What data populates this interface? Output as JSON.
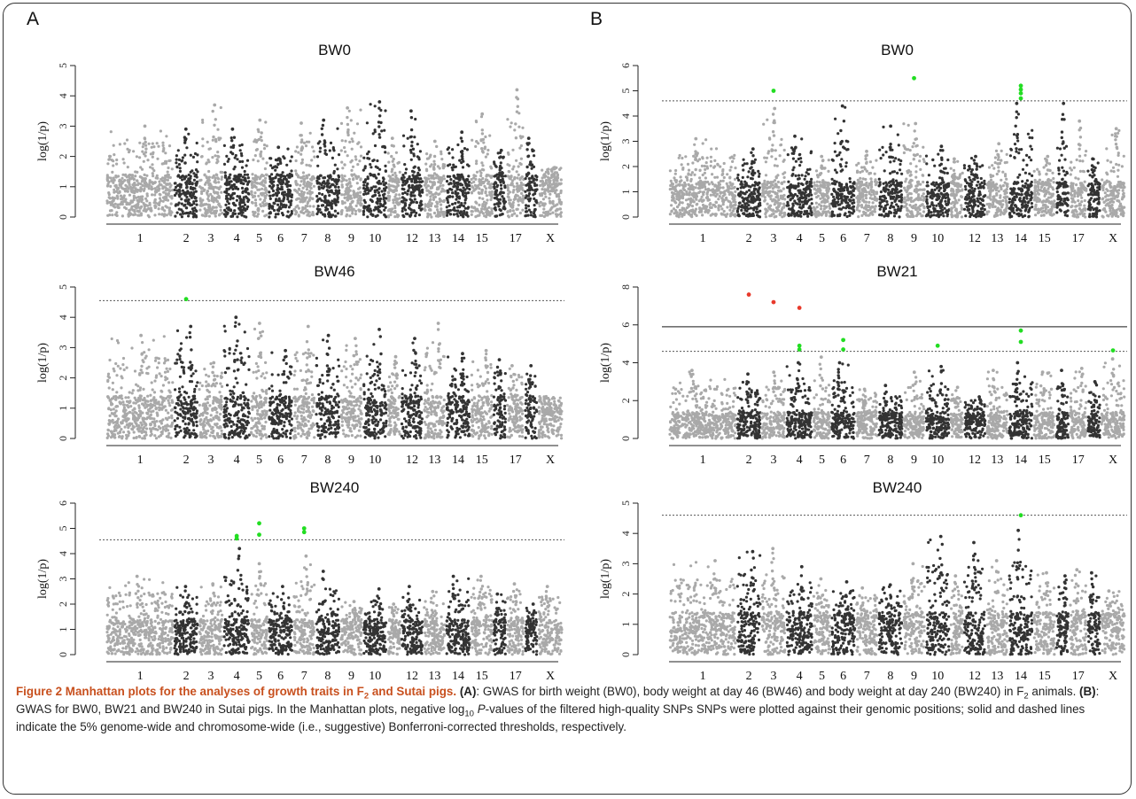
{
  "panels": {
    "A": "A",
    "B": "B"
  },
  "caption": {
    "title_a": "Figure 2 Manhattan plots for the analyses of growth traits in F",
    "title_sub": "2",
    "title_b": " and Sutai pigs.",
    "a_label": "(A)",
    "a_text": ": GWAS for birth weight (BW0), body weight at day 46 (BW46) and body weight at day 240 (BW240) in F",
    "a_sub": "2",
    "a_text2": " animals. ",
    "b_label": "(B)",
    "b_text": ": GWAS for BW0, BW21 and BW240 in Sutai pigs. In the Manhattan plots, negative log",
    "log_sub": "10",
    "p_italic": "P",
    "rest": "-values of the filtered high-quality SNPs SNPs were plotted against their genomic positions; solid and dashed lines indicate the 5% genome-wide and chromosome-wide (i.e., suggestive) Bonferroni-corrected thresholds, respectively."
  },
  "colors": {
    "light": "#a9a9a9",
    "dark": "#333333",
    "hit_green": "#22dd22",
    "hit_red": "#e8392b",
    "threshold": "#555555"
  },
  "chart_data": [
    {
      "id": "A-BW0",
      "panel": "A",
      "type": "scatter",
      "title": "BW0",
      "ylabel": "log(1/p)",
      "ylim": [
        0,
        5
      ],
      "yticks": [
        0,
        1,
        2,
        3,
        4,
        5
      ],
      "chromosomes": [
        "1",
        "2",
        "3",
        "4",
        "5",
        "6",
        "7",
        "8",
        "9",
        "10",
        "11",
        "12",
        "13",
        "14",
        "15",
        "16",
        "17",
        "18",
        "X"
      ],
      "chrom_labels_shown": [
        "1",
        "2",
        "3",
        "4",
        "5",
        "6",
        "7",
        "8",
        "9",
        "10",
        "12",
        "13",
        "14",
        "15",
        "17",
        "X"
      ],
      "chrom_peaks": [
        3.0,
        2.9,
        3.7,
        2.9,
        3.2,
        2.3,
        3.1,
        3.2,
        3.6,
        3.8,
        2.6,
        3.5,
        2.5,
        2.8,
        3.4,
        2.2,
        4.2,
        2.6,
        1.6
      ],
      "suggestive_threshold": null,
      "genome_threshold": null,
      "hits": []
    },
    {
      "id": "A-BW46",
      "panel": "A",
      "type": "scatter",
      "title": "BW46",
      "ylabel": "log(1/p)",
      "ylim": [
        0,
        5
      ],
      "yticks": [
        0,
        1,
        2,
        3,
        4,
        5
      ],
      "chromosomes": [
        "1",
        "2",
        "3",
        "4",
        "5",
        "6",
        "7",
        "8",
        "9",
        "10",
        "11",
        "12",
        "13",
        "14",
        "15",
        "16",
        "17",
        "18",
        "X"
      ],
      "chrom_labels_shown": [
        "1",
        "2",
        "3",
        "4",
        "5",
        "6",
        "7",
        "8",
        "9",
        "10",
        "12",
        "13",
        "14",
        "15",
        "17",
        "X"
      ],
      "chrom_peaks": [
        3.4,
        3.7,
        2.5,
        4.0,
        3.8,
        2.9,
        3.7,
        3.4,
        3.3,
        3.6,
        2.7,
        3.3,
        3.8,
        2.8,
        2.9,
        2.6,
        2.4,
        2.4,
        1.0
      ],
      "suggestive_threshold": 4.55,
      "genome_threshold": null,
      "hits": [
        {
          "chr": "2",
          "y": 4.6,
          "color": "green"
        }
      ]
    },
    {
      "id": "A-BW240",
      "panel": "A",
      "type": "scatter",
      "title": "BW240",
      "ylabel": "log(1/p)",
      "ylim": [
        0,
        6
      ],
      "yticks": [
        0,
        1,
        2,
        3,
        4,
        5,
        6
      ],
      "chromosomes": [
        "1",
        "2",
        "3",
        "4",
        "5",
        "6",
        "7",
        "8",
        "9",
        "10",
        "11",
        "12",
        "13",
        "14",
        "15",
        "16",
        "17",
        "18",
        "X"
      ],
      "chrom_labels_shown": [
        "1",
        "2",
        "3",
        "4",
        "5",
        "6",
        "7",
        "8",
        "9",
        "10",
        "12",
        "13",
        "14",
        "15",
        "17",
        "X"
      ],
      "chrom_peaks": [
        3.1,
        2.7,
        2.8,
        4.2,
        3.6,
        2.7,
        3.9,
        3.3,
        2.1,
        2.6,
        2.0,
        2.7,
        2.5,
        3.1,
        3.1,
        2.4,
        2.8,
        2.0,
        2.7
      ],
      "suggestive_threshold": 4.55,
      "genome_threshold": null,
      "hits": [
        {
          "chr": "4",
          "y": 4.7,
          "color": "green"
        },
        {
          "chr": "4",
          "y": 4.6,
          "color": "green"
        },
        {
          "chr": "5",
          "y": 5.2,
          "color": "green"
        },
        {
          "chr": "5",
          "y": 4.75,
          "color": "green"
        },
        {
          "chr": "7",
          "y": 5.0,
          "color": "green"
        },
        {
          "chr": "7",
          "y": 4.85,
          "color": "green"
        }
      ]
    },
    {
      "id": "B-BW0",
      "panel": "B",
      "type": "scatter",
      "title": "BW0",
      "ylabel": "log(1/p)",
      "ylim": [
        0,
        6
      ],
      "yticks": [
        0,
        1,
        2,
        3,
        4,
        5,
        6
      ],
      "chromosomes": [
        "1",
        "2",
        "3",
        "4",
        "5",
        "6",
        "7",
        "8",
        "9",
        "10",
        "11",
        "12",
        "13",
        "14",
        "15",
        "16",
        "17",
        "18",
        "X"
      ],
      "chrom_labels_shown": [
        "1",
        "2",
        "3",
        "4",
        "5",
        "6",
        "7",
        "8",
        "9",
        "10",
        "12",
        "13",
        "14",
        "15",
        "17",
        "X"
      ],
      "chrom_peaks": [
        3.1,
        2.7,
        4.3,
        3.2,
        2.4,
        4.4,
        2.6,
        3.6,
        3.7,
        2.8,
        2.3,
        2.4,
        2.9,
        4.5,
        2.4,
        4.5,
        3.8,
        2.3,
        3.5
      ],
      "suggestive_threshold": 4.6,
      "genome_threshold": null,
      "hits": [
        {
          "chr": "3",
          "y": 5.0,
          "color": "green"
        },
        {
          "chr": "9",
          "y": 5.5,
          "color": "green"
        },
        {
          "chr": "14",
          "y": 5.2,
          "color": "green"
        },
        {
          "chr": "14",
          "y": 5.05,
          "color": "green"
        },
        {
          "chr": "14",
          "y": 4.9,
          "color": "green"
        },
        {
          "chr": "14",
          "y": 4.7,
          "color": "green"
        }
      ]
    },
    {
      "id": "B-BW21",
      "panel": "B",
      "type": "scatter",
      "title": "BW21",
      "ylabel": "log(1/p)",
      "ylim": [
        0,
        8
      ],
      "yticks": [
        0,
        2,
        4,
        6,
        8
      ],
      "chromosomes": [
        "1",
        "2",
        "3",
        "4",
        "5",
        "6",
        "7",
        "8",
        "9",
        "10",
        "11",
        "12",
        "13",
        "14",
        "15",
        "16",
        "17",
        "18",
        "X"
      ],
      "chrom_labels_shown": [
        "1",
        "2",
        "3",
        "4",
        "5",
        "6",
        "7",
        "8",
        "9",
        "10",
        "12",
        "13",
        "14",
        "15",
        "17",
        "X"
      ],
      "chrom_peaks": [
        3.6,
        3.4,
        3.5,
        4.0,
        4.3,
        4.0,
        2.6,
        2.8,
        3.5,
        3.8,
        2.7,
        2.2,
        3.6,
        4.0,
        3.5,
        3.6,
        3.7,
        3.0,
        4.2
      ],
      "suggestive_threshold": 4.6,
      "genome_threshold": 5.9,
      "hits": [
        {
          "chr": "2",
          "y": 7.6,
          "color": "red"
        },
        {
          "chr": "3",
          "y": 7.2,
          "color": "red"
        },
        {
          "chr": "4",
          "y": 6.9,
          "color": "red"
        },
        {
          "chr": "4",
          "y": 4.9,
          "color": "green"
        },
        {
          "chr": "4",
          "y": 4.7,
          "color": "green"
        },
        {
          "chr": "6",
          "y": 5.2,
          "color": "green"
        },
        {
          "chr": "6",
          "y": 4.7,
          "color": "green"
        },
        {
          "chr": "10",
          "y": 4.9,
          "color": "green"
        },
        {
          "chr": "14",
          "y": 5.7,
          "color": "green"
        },
        {
          "chr": "14",
          "y": 5.1,
          "color": "green"
        },
        {
          "chr": "X",
          "y": 4.65,
          "color": "green"
        }
      ]
    },
    {
      "id": "B-BW240",
      "panel": "B",
      "type": "scatter",
      "title": "BW240",
      "ylabel": "log(1/p)",
      "ylim": [
        0,
        5
      ],
      "yticks": [
        0,
        1,
        2,
        3,
        4,
        5
      ],
      "chromosomes": [
        "1",
        "2",
        "3",
        "4",
        "5",
        "6",
        "7",
        "8",
        "9",
        "10",
        "11",
        "12",
        "13",
        "14",
        "15",
        "16",
        "17",
        "18",
        "X"
      ],
      "chrom_labels_shown": [
        "1",
        "2",
        "3",
        "4",
        "5",
        "6",
        "7",
        "8",
        "9",
        "10",
        "12",
        "13",
        "14",
        "15",
        "17",
        "X"
      ],
      "chrom_peaks": [
        3.1,
        3.4,
        3.5,
        2.9,
        2.5,
        2.4,
        2.2,
        2.3,
        3.0,
        3.9,
        2.6,
        3.7,
        3.1,
        4.1,
        2.7,
        2.6,
        2.8,
        2.7,
        2.1
      ],
      "suggestive_threshold": 4.6,
      "genome_threshold": null,
      "hits": [
        {
          "chr": "14",
          "y": 4.6,
          "color": "green"
        }
      ]
    }
  ]
}
